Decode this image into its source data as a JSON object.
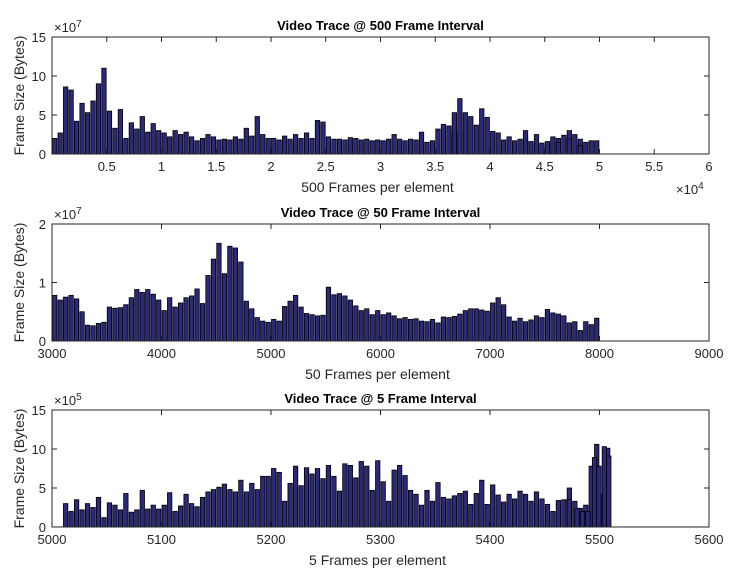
{
  "chart_data": [
    {
      "type": "bar",
      "title": "Video Trace @ 500 Frame Interval",
      "xlabel": "500 Frames per element",
      "ylabel": "Frame Size (Bytes)",
      "xlim": [
        0,
        60000
      ],
      "ylim": [
        0,
        150000000
      ],
      "x_ticks": [
        5000,
        10000,
        15000,
        20000,
        25000,
        30000,
        35000,
        40000,
        45000,
        50000,
        55000,
        60000
      ],
      "x_tick_labels": [
        "0.5",
        "1",
        "1.5",
        "2",
        "2.5",
        "3",
        "3.5",
        "4",
        "4.5",
        "5",
        "5.5",
        "6"
      ],
      "x_exponent": "×10",
      "x_exponent_power": "4",
      "y_ticks": [
        0,
        50000000,
        100000000,
        150000000
      ],
      "y_tick_labels": [
        "0",
        "5",
        "10",
        "15"
      ],
      "y_exponent": "×10",
      "y_exponent_power": "7",
      "x": [
        0,
        500,
        1000,
        1500,
        2000,
        2500,
        3000,
        3500,
        4000,
        4500,
        5000,
        5500,
        6000,
        6500,
        7000,
        7500,
        8000,
        8500,
        9000,
        9500,
        10000,
        10500,
        11000,
        11500,
        12000,
        12500,
        13000,
        13500,
        14000,
        14500,
        15000,
        15500,
        16000,
        16500,
        17000,
        17500,
        18000,
        18500,
        19000,
        19500,
        20000,
        20500,
        21000,
        21500,
        22000,
        22500,
        23000,
        23500,
        24000,
        24500,
        25000,
        25500,
        26000,
        26500,
        27000,
        27500,
        28000,
        28500,
        29000,
        29500,
        30000,
        30500,
        31000,
        31500,
        32000,
        32500,
        33000,
        33500,
        34000,
        34500,
        35000,
        35500,
        36000,
        36500,
        37000,
        37500,
        38000,
        38500,
        39000,
        39500,
        40000,
        40500,
        41000,
        41500,
        42000,
        42500,
        43000,
        43500,
        44000,
        44500,
        45000,
        45500,
        46000,
        46500,
        47000,
        47500,
        48000,
        48500,
        49000,
        49500
      ],
      "values": [
        20000000,
        27000000,
        86000000,
        82000000,
        42000000,
        65000000,
        53000000,
        68000000,
        90000000,
        110000000,
        55000000,
        33000000,
        57000000,
        20000000,
        40000000,
        32000000,
        48000000,
        28000000,
        39000000,
        30000000,
        27000000,
        22000000,
        30000000,
        25000000,
        28000000,
        22000000,
        17000000,
        20000000,
        25000000,
        22000000,
        18000000,
        19000000,
        18000000,
        22000000,
        19000000,
        33000000,
        23000000,
        48000000,
        25000000,
        20000000,
        20000000,
        18000000,
        23000000,
        19000000,
        25000000,
        20000000,
        27000000,
        20000000,
        43000000,
        41000000,
        22000000,
        19000000,
        19000000,
        18000000,
        21000000,
        20000000,
        18000000,
        19000000,
        17000000,
        18000000,
        17000000,
        19000000,
        25000000,
        19000000,
        17000000,
        19000000,
        18000000,
        16000000,
        15000000,
        17000000,
        32000000,
        38000000,
        36000000,
        27000000,
        30000000,
        53000000,
        48000000,
        37000000,
        58000000,
        47000000,
        29000000,
        27000000,
        18000000,
        22000000,
        17000000,
        19000000,
        21000000,
        16000000,
        13000000,
        14000000,
        16000000,
        18000000,
        20000000,
        24000000,
        30000000,
        25000000,
        19000000,
        15000000,
        17000000,
        17000000
      ],
      "extra_bars": [
        {
          "x": 33500,
          "value": 28000000
        },
        {
          "x": 36500,
          "value": 53000000
        },
        {
          "x": 37000,
          "value": 71000000
        },
        {
          "x": 43000,
          "value": 30000000
        },
        {
          "x": 44000,
          "value": 25000000
        },
        {
          "x": 45500,
          "value": 22000000
        },
        {
          "x": 46000,
          "value": 15000000
        },
        {
          "x": 47000,
          "value": 19000000
        },
        {
          "x": 48000,
          "value": 11000000
        }
      ]
    },
    {
      "type": "bar",
      "title": "Video Trace @ 50 Frame Interval",
      "xlabel": "50 Frames per element",
      "ylabel": "Frame Size (Bytes)",
      "xlim": [
        3000,
        9000
      ],
      "ylim": [
        0,
        20000000
      ],
      "x_ticks": [
        3000,
        4000,
        5000,
        6000,
        7000,
        8000,
        9000
      ],
      "x_tick_labels": [
        "3000",
        "4000",
        "5000",
        "6000",
        "7000",
        "8000",
        "9000"
      ],
      "y_ticks": [
        0,
        10000000,
        20000000
      ],
      "y_tick_labels": [
        "0",
        "1",
        "2"
      ],
      "y_exponent": "×10",
      "y_exponent_power": "7",
      "x": [
        3000,
        3050,
        3100,
        3150,
        3200,
        3250,
        3300,
        3350,
        3400,
        3450,
        3500,
        3550,
        3600,
        3650,
        3700,
        3750,
        3800,
        3850,
        3900,
        3950,
        4000,
        4050,
        4100,
        4150,
        4200,
        4250,
        4300,
        4350,
        4400,
        4450,
        4500,
        4550,
        4600,
        4650,
        4700,
        4750,
        4800,
        4850,
        4900,
        4950,
        5000,
        5050,
        5100,
        5150,
        5200,
        5250,
        5300,
        5350,
        5400,
        5450,
        5500,
        5550,
        5600,
        5650,
        5700,
        5750,
        5800,
        5850,
        5900,
        5950,
        6000,
        6050,
        6100,
        6150,
        6200,
        6250,
        6300,
        6350,
        6400,
        6450,
        6500,
        6550,
        6600,
        6650,
        6700,
        6750,
        6800,
        6850,
        6900,
        6950,
        7000,
        7050,
        7100,
        7150,
        7200,
        7250,
        7300,
        7350,
        7400,
        7450,
        7500,
        7550,
        7600,
        7650,
        7700,
        7750,
        7800,
        7850,
        7900,
        7950
      ],
      "values": [
        7800000,
        7000000,
        7500000,
        7800000,
        7200000,
        5000000,
        2700000,
        2600000,
        3000000,
        3200000,
        5800000,
        5600000,
        5700000,
        6200000,
        7400000,
        8800000,
        8300000,
        8800000,
        8000000,
        7000000,
        5200000,
        7400000,
        5800000,
        6500000,
        7400000,
        7700000,
        8900000,
        6400000,
        11200000,
        14000000,
        16700000,
        11500000,
        16200000,
        15900000,
        13500000,
        6800000,
        5500000,
        4000000,
        3400000,
        3200000,
        3700000,
        3400000,
        5900000,
        6800000,
        7800000,
        5800000,
        4700000,
        4500000,
        4300000,
        4400000,
        9200000,
        7900000,
        8100000,
        7700000,
        7000000,
        6000000,
        5200000,
        5500000,
        4500000,
        5200000,
        4500000,
        4800000,
        4300000,
        3800000,
        4000000,
        3700000,
        3800000,
        3400000,
        3300000,
        3700000,
        3100000,
        4100000,
        4000000,
        4200000,
        4600000,
        5200000,
        5500000,
        5500000,
        5300000,
        5100000,
        6500000,
        7400000,
        6200000,
        4100000,
        3400000,
        3900000,
        3300000,
        3600000,
        4300000,
        4000000,
        5400000,
        4800000,
        4600000,
        4300000,
        3100000,
        3300000,
        1800000,
        3300000,
        2800000,
        3900000
      ]
    },
    {
      "type": "bar",
      "title": "Video Trace @ 5 Frame Interval",
      "xlabel": "5 Frames per element",
      "ylabel": "Frame Size (Bytes)",
      "xlim": [
        5000,
        5600
      ],
      "ylim": [
        0,
        1500000
      ],
      "x_ticks": [
        5000,
        5100,
        5200,
        5300,
        5400,
        5500,
        5600
      ],
      "x_tick_labels": [
        "5000",
        "5100",
        "5200",
        "5300",
        "5400",
        "5500",
        "5600"
      ],
      "y_ticks": [
        0,
        500000,
        1000000,
        1500000
      ],
      "y_tick_labels": [
        "0",
        "5",
        "10",
        "15"
      ],
      "y_exponent": "×10",
      "y_exponent_power": "5",
      "x": [
        5010,
        5015,
        5020,
        5025,
        5030,
        5035,
        5040,
        5045,
        5050,
        5055,
        5060,
        5065,
        5070,
        5075,
        5080,
        5085,
        5090,
        5095,
        5100,
        5105,
        5110,
        5115,
        5120,
        5125,
        5130,
        5135,
        5140,
        5145,
        5150,
        5155,
        5160,
        5165,
        5170,
        5175,
        5180,
        5185,
        5190,
        5195,
        5200,
        5205,
        5210,
        5215,
        5220,
        5225,
        5230,
        5235,
        5240,
        5245,
        5250,
        5255,
        5260,
        5265,
        5270,
        5275,
        5280,
        5285,
        5290,
        5295,
        5300,
        5305,
        5310,
        5315,
        5320,
        5325,
        5330,
        5335,
        5340,
        5345,
        5350,
        5355,
        5360,
        5365,
        5370,
        5375,
        5380,
        5385,
        5390,
        5395,
        5400,
        5405,
        5410,
        5415,
        5420,
        5425,
        5430,
        5435,
        5440,
        5445,
        5450,
        5455,
        5460,
        5465,
        5470,
        5475,
        5480,
        5485,
        5490,
        5495,
        5500,
        5505
      ],
      "values": [
        300000,
        200000,
        350000,
        220000,
        300000,
        250000,
        380000,
        120000,
        310000,
        280000,
        220000,
        430000,
        190000,
        220000,
        470000,
        230000,
        280000,
        230000,
        280000,
        440000,
        200000,
        270000,
        420000,
        300000,
        260000,
        380000,
        450000,
        480000,
        510000,
        550000,
        480000,
        450000,
        600000,
        450000,
        560000,
        480000,
        650000,
        650000,
        750000,
        700000,
        330000,
        560000,
        780000,
        530000,
        760000,
        680000,
        750000,
        620000,
        790000,
        650000,
        460000,
        810000,
        790000,
        630000,
        840000,
        780000,
        470000,
        850000,
        580000,
        330000,
        730000,
        790000,
        660000,
        470000,
        420000,
        280000,
        470000,
        330000,
        570000,
        380000,
        360000,
        400000,
        430000,
        460000,
        290000,
        430000,
        600000,
        290000,
        540000,
        410000,
        320000,
        420000,
        360000,
        460000,
        420000,
        330000,
        450000,
        360000,
        290000,
        200000,
        340000,
        350000,
        500000,
        330000,
        240000,
        280000,
        780000,
        1060000,
        420000,
        1010000
      ],
      "extra_bars": [
        {
          "x": 5470,
          "value": 350000
        },
        {
          "x": 5477,
          "value": 240000
        },
        {
          "x": 5482,
          "value": 200000
        },
        {
          "x": 5487,
          "value": 200000
        },
        {
          "x": 5493,
          "value": 890000
        },
        {
          "x": 5497,
          "value": 780000
        },
        {
          "x": 5502,
          "value": 1030000
        },
        {
          "x": 5506,
          "value": 910000
        }
      ]
    }
  ]
}
